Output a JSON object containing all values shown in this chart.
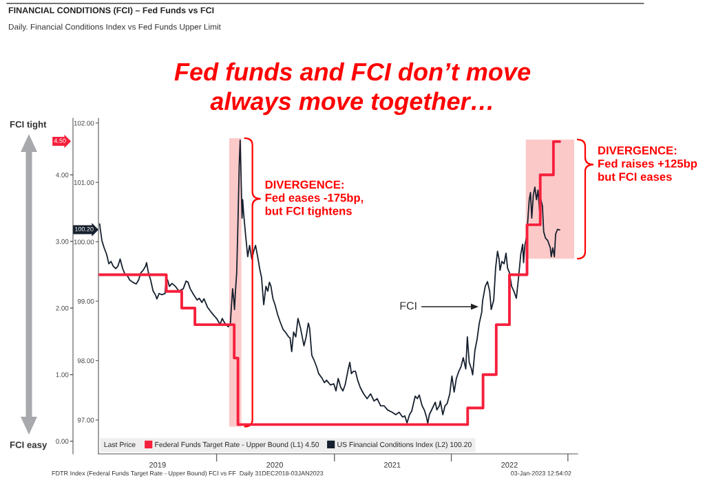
{
  "chart_data": {
    "type": "line",
    "title": "FINANCIAL CONDITIONS (FCI) – Fed Funds vs FCI",
    "subtitle": "Daily. Financial Conditions Index vs Fed Funds Upper Limit",
    "legend_title": "Last Price",
    "legend": "bottom left",
    "grid": false,
    "line_style": "solid",
    "xlim": [
      "2018-12-27",
      "2023-03-01"
    ],
    "xticks": [
      {
        "value": "2019-07-03",
        "label": "2019"
      },
      {
        "value": "2020-01-07",
        "label": null
      },
      {
        "value": "2020-07-10",
        "label": "2020"
      },
      {
        "value": "2021-01-16",
        "label": null
      },
      {
        "value": "2021-07-19",
        "label": "2021"
      },
      {
        "value": "2022-01-23",
        "label": null
      },
      {
        "value": "2022-07-27",
        "label": "2022"
      },
      {
        "value": "2023-01-29",
        "label": null
      }
    ],
    "ylim": [
      -0.19,
      4.85
    ],
    "yticks": [
      {
        "value": 0,
        "label": "0.00"
      },
      {
        "value": 1,
        "label": "1.00"
      },
      {
        "value": 2,
        "label": "2.00"
      },
      {
        "value": 3,
        "label": "3.00"
      },
      {
        "value": 4,
        "label": "4.00"
      }
    ],
    "y2lim": [
      96.43,
      102.08
    ],
    "y2ticks": [
      {
        "value": 97,
        "label": "97.00"
      },
      {
        "value": 98,
        "label": "98.00"
      },
      {
        "value": 99,
        "label": "99.00"
      },
      {
        "value": 100,
        "label": "100.00"
      },
      {
        "value": 101,
        "label": "101.00"
      },
      {
        "value": 102,
        "label": "102.00"
      }
    ],
    "series": [
      {
        "name": "Federal Funds Target Rate - Upper Bound (L1) 4.50",
        "type": "step",
        "axis": "y",
        "color": "#f5203c",
        "x": [
          "2018-12-31",
          "2019-07-31",
          "2019-09-18",
          "2019-10-30",
          "2020-03-03",
          "2020-03-15",
          "2022-03-16",
          "2022-05-04",
          "2022-06-15",
          "2022-07-27",
          "2022-09-21",
          "2022-11-02",
          "2022-12-14",
          "2023-01-03"
        ],
        "values": [
          2.5,
          2.25,
          2.0,
          1.75,
          1.25,
          0.25,
          0.5,
          1.0,
          1.75,
          2.5,
          3.25,
          4.0,
          4.5,
          4.5
        ]
      },
      {
        "name": "US Financial Conditions Index (L2) 100.20",
        "axis": "y2",
        "color": "#16202e",
        "x": [
          "2018-12-31",
          "2019-01-02",
          "2019-01-07",
          "2019-01-14",
          "2019-01-22",
          "2019-01-29",
          "2019-02-05",
          "2019-02-12",
          "2019-02-20",
          "2019-02-27",
          "2019-03-06",
          "2019-03-14",
          "2019-03-21",
          "2019-03-28",
          "2019-04-05",
          "2019-04-15",
          "2019-04-26",
          "2019-05-04",
          "2019-05-11",
          "2019-05-18",
          "2019-05-26",
          "2019-05-29",
          "2019-06-04",
          "2019-06-11",
          "2019-06-19",
          "2019-06-26",
          "2019-07-01",
          "2019-07-08",
          "2019-07-16",
          "2019-07-27",
          "2019-07-30",
          "2019-08-04",
          "2019-08-10",
          "2019-08-18",
          "2019-08-29",
          "2019-09-09",
          "2019-09-23",
          "2019-10-02",
          "2019-10-08",
          "2019-10-15",
          "2019-10-26",
          "2019-11-06",
          "2019-11-13",
          "2019-11-21",
          "2019-11-28",
          "2019-12-09",
          "2019-12-20",
          "2019-12-31",
          "2020-01-07",
          "2020-01-18",
          "2020-01-25",
          "2020-02-02",
          "2020-02-13",
          "2020-02-20",
          "2020-02-23",
          "2020-02-27",
          "2020-03-02",
          "2020-03-04",
          "2020-03-07",
          "2020-03-11",
          "2020-03-15",
          "2020-03-19",
          "2020-03-22",
          "2020-03-24",
          "2020-03-28",
          "2020-03-30",
          "2020-04-02",
          "2020-04-08",
          "2020-04-15",
          "2020-04-21",
          "2020-04-28",
          "2020-05-05",
          "2020-05-10",
          "2020-05-18",
          "2020-05-23",
          "2020-05-29",
          "2020-06-05",
          "2020-06-12",
          "2020-06-18",
          "2020-06-23",
          "2020-06-28",
          "2020-07-04",
          "2020-07-11",
          "2020-07-19",
          "2020-07-26",
          "2020-08-06",
          "2020-08-13",
          "2020-08-23",
          "2020-08-28",
          "2020-09-02",
          "2020-09-08",
          "2020-09-15",
          "2020-09-22",
          "2020-09-30",
          "2020-10-11",
          "2020-10-18",
          "2020-10-25",
          "2020-10-29",
          "2020-11-05",
          "2020-11-12",
          "2020-11-20",
          "2020-11-27",
          "2020-12-08",
          "2020-12-15",
          "2020-12-22",
          "2021-01-03",
          "2021-01-14",
          "2021-01-21",
          "2021-01-28",
          "2021-02-05",
          "2021-02-12",
          "2021-02-19",
          "2021-03-01",
          "2021-03-06",
          "2021-03-11",
          "2021-03-17",
          "2021-03-24",
          "2021-03-31",
          "2021-04-08",
          "2021-04-19",
          "2021-04-30",
          "2021-05-11",
          "2021-05-22",
          "2021-06-01",
          "2021-06-12",
          "2021-06-23",
          "2021-07-04",
          "2021-07-19",
          "2021-07-30",
          "2021-08-10",
          "2021-08-21",
          "2021-08-28",
          "2021-09-04",
          "2021-09-12",
          "2021-09-19",
          "2021-09-30",
          "2021-10-07",
          "2021-10-13",
          "2021-10-22",
          "2021-10-29",
          "2021-11-05",
          "2021-11-09",
          "2021-11-14",
          "2021-11-24",
          "2021-12-03",
          "2021-12-08",
          "2021-12-16",
          "2021-12-19",
          "2021-12-27",
          "2022-01-03",
          "2022-01-10",
          "2022-01-18",
          "2022-01-25",
          "2022-02-01",
          "2022-02-08",
          "2022-02-16",
          "2022-02-23",
          "2022-03-02",
          "2022-03-10",
          "2022-03-15",
          "2022-03-21",
          "2022-03-28",
          "2022-04-01",
          "2022-04-08",
          "2022-04-15",
          "2022-04-22",
          "2022-04-30",
          "2022-05-01",
          "2022-05-03",
          "2022-05-11",
          "2022-05-18",
          "2022-05-25",
          "2022-05-30",
          "2022-06-07",
          "2022-06-13",
          "2022-06-19",
          "2022-06-24",
          "2022-06-27",
          "2022-07-03",
          "2022-07-10",
          "2022-07-16",
          "2022-07-21",
          "2022-07-27",
          "2022-08-03",
          "2022-08-10",
          "2022-08-18",
          "2022-08-25",
          "2022-09-01",
          "2022-09-07",
          "2022-09-10",
          "2022-09-14",
          "2022-09-20",
          "2022-09-23",
          "2022-09-28",
          "2022-10-02",
          "2022-10-06",
          "2022-10-11",
          "2022-10-16",
          "2022-10-21",
          "2022-10-26",
          "2022-10-31",
          "2022-11-04",
          "2022-11-09",
          "2022-11-13",
          "2022-11-19",
          "2022-11-26",
          "2022-12-04",
          "2022-12-07",
          "2022-12-12",
          "2022-12-17",
          "2022-12-21",
          "2022-12-27",
          "2023-01-03"
        ],
        "values": [
          100.3,
          100.21,
          100.02,
          99.9,
          99.79,
          99.63,
          99.67,
          99.59,
          99.55,
          99.59,
          99.71,
          99.55,
          99.46,
          99.44,
          99.36,
          99.32,
          99.29,
          99.36,
          99.48,
          99.52,
          99.59,
          99.65,
          99.48,
          99.36,
          99.17,
          99.11,
          99.04,
          99.13,
          99.11,
          99.13,
          99.32,
          99.36,
          99.25,
          99.3,
          99.25,
          99.17,
          99.21,
          99.34,
          99.32,
          99.21,
          99.11,
          99.02,
          99.05,
          98.98,
          99.04,
          98.9,
          98.82,
          98.75,
          98.71,
          98.61,
          98.71,
          98.63,
          98.57,
          98.63,
          98.9,
          99.21,
          99.01,
          98.86,
          99.17,
          99.48,
          100.33,
          101.29,
          101.71,
          101.29,
          100.4,
          100.71,
          100.48,
          100.13,
          99.75,
          99.94,
          99.71,
          99.86,
          99.94,
          99.71,
          99.55,
          99.4,
          98.94,
          99.25,
          99.17,
          99.32,
          99.25,
          99.05,
          98.94,
          98.78,
          98.67,
          98.52,
          98.48,
          98.4,
          98.38,
          98.15,
          98.48,
          98.4,
          98.71,
          98.55,
          98.25,
          98.4,
          98.63,
          98.55,
          98.09,
          98.01,
          97.9,
          97.78,
          97.7,
          97.63,
          97.67,
          97.59,
          97.61,
          97.49,
          97.7,
          97.55,
          97.49,
          97.59,
          97.86,
          97.97,
          97.78,
          97.82,
          97.82,
          97.67,
          97.55,
          97.44,
          97.36,
          97.44,
          97.32,
          97.36,
          97.24,
          97.24,
          97.17,
          97.13,
          97.09,
          97.13,
          97.05,
          97.07,
          96.95,
          97.09,
          97.15,
          97.4,
          97.36,
          97.42,
          97.24,
          97.17,
          97.05,
          96.94,
          97.09,
          97.2,
          97.3,
          97.17,
          97.24,
          97.32,
          97.09,
          97.24,
          97.28,
          97.44,
          97.74,
          97.47,
          97.7,
          97.82,
          97.9,
          98.05,
          97.86,
          98.4,
          97.97,
          97.86,
          97.76,
          98.17,
          98.36,
          98.63,
          98.82,
          98.91,
          99.02,
          99.25,
          99.33,
          99.17,
          98.86,
          99.02,
          99.56,
          99.84,
          99.71,
          99.52,
          99.67,
          99.63,
          99.81,
          99.56,
          99.48,
          99.25,
          99.17,
          99.05,
          99.4,
          99.79,
          99.96,
          99.65,
          99.94,
          100.09,
          100.33,
          100.71,
          100.83,
          100.4,
          100.79,
          100.92,
          100.71,
          100.87,
          100.52,
          100.71,
          100.6,
          100.17,
          100.06,
          100.02,
          99.9,
          99.75,
          99.9,
          99.75,
          100.13,
          100.21,
          100.2
        ]
      }
    ],
    "bands": [
      {
        "axis": "x",
        "from": "2020-02-16",
        "to": "2020-03-26",
        "label": "DIVERGENCE:\nFed eases -175bp,\nbut FCI tightens",
        "color": "#fcc9c9"
      },
      {
        "axis": "x",
        "from": "2022-09-17",
        "to": "2023-02-18",
        "label": "DIVERGENCE:\nFed raises +125bp\nbut FCI eases",
        "color": "#fcc9c9"
      }
    ],
    "annotations": [
      "Fed funds and FCI don’t move\nalways move together…",
      "FCI tight",
      "FCI easy",
      "4.50",
      "100.20",
      "FCI",
      "FDTR Index (Federal Funds Target Rate - Upper Bound) FCI vs FF  Daily 31DEC2018-03JAN2023",
      "03-Jan-2023 12:54:02"
    ]
  }
}
